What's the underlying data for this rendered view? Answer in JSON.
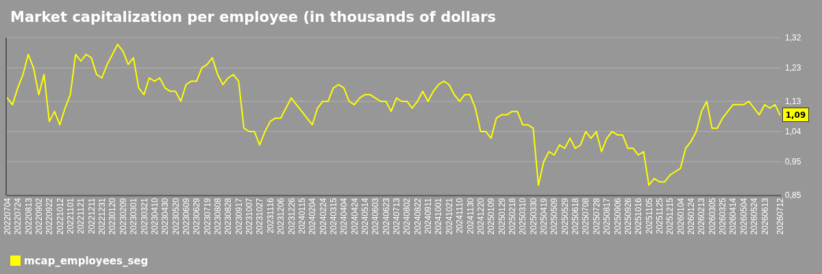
{
  "chart_data": {
    "type": "line",
    "title": "Market capitalization per employee (in thousands of dollars",
    "x": [
      "2022-07-04",
      "2022-07-14",
      "2022-07-24",
      "2022-08-03",
      "2022-08-13",
      "2022-08-23",
      "2022-09-02",
      "2022-09-12",
      "2022-09-22",
      "2022-10-02",
      "2022-10-12",
      "2022-10-22",
      "2022-11-01",
      "2022-11-11",
      "2022-11-21",
      "2022-12-01",
      "2022-12-11",
      "2022-12-21",
      "2022-12-31",
      "2023-01-10",
      "2023-01-20",
      "2023-01-30",
      "2023-02-09",
      "2023-02-19",
      "2023-03-01",
      "2023-03-11",
      "2023-03-21",
      "2023-03-31",
      "2023-04-10",
      "2023-04-20",
      "2023-04-30",
      "2023-05-10",
      "2023-05-20",
      "2023-05-30",
      "2023-06-09",
      "2023-06-19",
      "2023-06-29",
      "2023-07-09",
      "2023-07-19",
      "2023-07-29",
      "2023-08-08",
      "2023-08-18",
      "2023-08-28",
      "2023-09-07",
      "2023-09-17",
      "2023-09-27",
      "2023-10-07",
      "2023-10-17",
      "2023-10-27",
      "2023-11-06",
      "2023-11-16",
      "2023-11-26",
      "2023-12-06",
      "2023-12-16",
      "2023-12-26",
      "2024-01-05",
      "2024-01-15",
      "2024-01-25",
      "2024-02-04",
      "2024-02-14",
      "2024-02-24",
      "2024-03-05",
      "2024-03-15",
      "2024-03-25",
      "2024-04-04",
      "2024-04-14",
      "2024-04-24",
      "2024-05-04",
      "2024-05-14",
      "2024-05-24",
      "2024-06-03",
      "2024-06-13",
      "2024-06-23",
      "2024-07-03",
      "2024-07-13",
      "2024-07-23",
      "2024-08-02",
      "2024-08-12",
      "2024-08-22",
      "2024-09-01",
      "2024-09-11",
      "2024-09-21",
      "2024-10-01",
      "2024-10-11",
      "2024-10-21",
      "2024-10-31",
      "2024-11-10",
      "2024-11-20",
      "2024-11-30",
      "2024-12-10",
      "2024-12-20",
      "2024-12-30",
      "2025-01-09",
      "2025-01-19",
      "2025-01-29",
      "2025-02-08",
      "2025-02-18",
      "2025-02-28",
      "2025-03-10",
      "2025-03-20",
      "2025-03-30",
      "2025-04-09",
      "2025-04-19",
      "2025-04-29",
      "2025-05-09",
      "2025-05-19",
      "2025-05-29",
      "2025-06-08",
      "2025-06-18",
      "2025-06-28",
      "2025-07-08",
      "2025-07-18",
      "2025-07-28",
      "2025-08-07",
      "2025-08-17",
      "2025-08-27",
      "2025-09-06",
      "2025-09-16",
      "2025-09-26",
      "2025-10-06",
      "2025-10-16",
      "2025-10-26",
      "2025-11-05",
      "2025-11-15",
      "2025-11-25",
      "2025-12-05",
      "2025-12-15",
      "2025-12-25",
      "2026-01-04",
      "2026-01-14",
      "2026-01-24",
      "2026-02-03",
      "2026-02-13",
      "2026-02-23",
      "2026-03-05",
      "2026-03-15",
      "2026-03-25",
      "2026-04-04",
      "2026-04-14",
      "2026-04-24",
      "2026-05-04",
      "2026-05-14",
      "2026-05-24",
      "2026-06-03",
      "2026-06-13",
      "2026-06-23",
      "2026-07-03",
      "2026-07-12"
    ],
    "series": [
      {
        "name": "mcap_employees_seg",
        "color": "#ffff00",
        "values": [
          1.14,
          1.12,
          1.17,
          1.21,
          1.27,
          1.23,
          1.15,
          1.21,
          1.07,
          1.1,
          1.06,
          1.11,
          1.15,
          1.27,
          1.25,
          1.27,
          1.26,
          1.21,
          1.2,
          1.24,
          1.27,
          1.3,
          1.28,
          1.24,
          1.26,
          1.17,
          1.15,
          1.2,
          1.19,
          1.2,
          1.17,
          1.16,
          1.16,
          1.13,
          1.18,
          1.19,
          1.19,
          1.23,
          1.24,
          1.26,
          1.21,
          1.18,
          1.2,
          1.21,
          1.19,
          1.05,
          1.04,
          1.04,
          1.0,
          1.04,
          1.07,
          1.08,
          1.08,
          1.11,
          1.14,
          1.12,
          1.1,
          1.08,
          1.06,
          1.11,
          1.13,
          1.13,
          1.17,
          1.18,
          1.17,
          1.13,
          1.12,
          1.14,
          1.15,
          1.15,
          1.14,
          1.13,
          1.13,
          1.1,
          1.14,
          1.13,
          1.13,
          1.11,
          1.13,
          1.16,
          1.13,
          1.16,
          1.18,
          1.19,
          1.18,
          1.15,
          1.13,
          1.15,
          1.15,
          1.11,
          1.04,
          1.04,
          1.02,
          1.08,
          1.09,
          1.09,
          1.1,
          1.1,
          1.06,
          1.06,
          1.05,
          0.88,
          0.95,
          0.98,
          0.97,
          1.0,
          0.99,
          1.02,
          0.99,
          1.0,
          1.04,
          1.02,
          1.04,
          0.98,
          1.02,
          1.04,
          1.03,
          1.03,
          0.99,
          0.99,
          0.97,
          0.98,
          0.88,
          0.9,
          0.89,
          0.89,
          0.91,
          0.92,
          0.93,
          0.99,
          1.01,
          1.04,
          1.1,
          1.13,
          1.05,
          1.05,
          1.08,
          1.1,
          1.12,
          1.12,
          1.12,
          1.13,
          1.11,
          1.09,
          1.12,
          1.11,
          1.12,
          1.09
        ]
      }
    ],
    "xlim": [
      "2022-07-02",
      "2026-07-14"
    ],
    "ylim": [
      0.85,
      1.32
    ],
    "xticks": [
      {
        "value": "2022-07-04",
        "label": "20220704"
      },
      {
        "value": "2022-07-24",
        "label": "20220724"
      },
      {
        "value": "2022-08-13",
        "label": "20220813"
      },
      {
        "value": "2022-09-02",
        "label": "20220902"
      },
      {
        "value": "2022-09-22",
        "label": "20220922"
      },
      {
        "value": "2022-10-12",
        "label": "20221012"
      },
      {
        "value": "2022-11-01",
        "label": "20221101"
      },
      {
        "value": "2022-11-21",
        "label": "20221121"
      },
      {
        "value": "2022-12-11",
        "label": "20221211"
      },
      {
        "value": "2022-12-31",
        "label": "20221231"
      },
      {
        "value": "2023-01-20",
        "label": "20230120"
      },
      {
        "value": "2023-02-09",
        "label": "20230209"
      },
      {
        "value": "2023-03-01",
        "label": "20230301"
      },
      {
        "value": "2023-03-21",
        "label": "20230321"
      },
      {
        "value": "2023-04-10",
        "label": "20230410"
      },
      {
        "value": "2023-04-30",
        "label": "20230430"
      },
      {
        "value": "2023-05-20",
        "label": "20230520"
      },
      {
        "value": "2023-06-09",
        "label": "20230609"
      },
      {
        "value": "2023-06-29",
        "label": "20230629"
      },
      {
        "value": "2023-07-19",
        "label": "20230719"
      },
      {
        "value": "2023-08-08",
        "label": "20230808"
      },
      {
        "value": "2023-08-28",
        "label": "20230828"
      },
      {
        "value": "2023-09-17",
        "label": "20230917"
      },
      {
        "value": "2023-10-07",
        "label": "20231007"
      },
      {
        "value": "2023-10-27",
        "label": "20231027"
      },
      {
        "value": "2023-11-16",
        "label": "20231116"
      },
      {
        "value": "2023-12-06",
        "label": "20231206"
      },
      {
        "value": "2023-12-26",
        "label": "20231226"
      },
      {
        "value": "2024-01-15",
        "label": "20240115"
      },
      {
        "value": "2024-02-04",
        "label": "20240204"
      },
      {
        "value": "2024-02-24",
        "label": "20240224"
      },
      {
        "value": "2024-03-15",
        "label": "20240315"
      },
      {
        "value": "2024-04-04",
        "label": "20240404"
      },
      {
        "value": "2024-04-24",
        "label": "20240424"
      },
      {
        "value": "2024-05-14",
        "label": "20240514"
      },
      {
        "value": "2024-06-03",
        "label": "20240603"
      },
      {
        "value": "2024-06-23",
        "label": "20240623"
      },
      {
        "value": "2024-07-13",
        "label": "20240713"
      },
      {
        "value": "2024-08-02",
        "label": "20240802"
      },
      {
        "value": "2024-08-22",
        "label": "20240822"
      },
      {
        "value": "2024-09-11",
        "label": "20240911"
      },
      {
        "value": "2024-10-01",
        "label": "20241001"
      },
      {
        "value": "2024-10-21",
        "label": "20241021"
      },
      {
        "value": "2024-11-10",
        "label": "20241110"
      },
      {
        "value": "2024-11-30",
        "label": "20241130"
      },
      {
        "value": "2024-12-20",
        "label": "20241220"
      },
      {
        "value": "2025-01-09",
        "label": "20250109"
      },
      {
        "value": "2025-01-29",
        "label": "20250129"
      },
      {
        "value": "2025-02-18",
        "label": "20250218"
      },
      {
        "value": "2025-03-10",
        "label": "20250310"
      },
      {
        "value": "2025-03-30",
        "label": "20250330"
      },
      {
        "value": "2025-04-19",
        "label": "20250419"
      },
      {
        "value": "2025-05-09",
        "label": "20250509"
      },
      {
        "value": "2025-05-29",
        "label": "20250529"
      },
      {
        "value": "2025-06-18",
        "label": "20250618"
      },
      {
        "value": "2025-07-08",
        "label": "20250708"
      },
      {
        "value": "2025-07-28",
        "label": "20250728"
      },
      {
        "value": "2025-08-17",
        "label": "20250817"
      },
      {
        "value": "2025-09-06",
        "label": "20250906"
      },
      {
        "value": "2025-09-26",
        "label": "20250926"
      },
      {
        "value": "2025-10-16",
        "label": "20251016"
      },
      {
        "value": "2025-11-05",
        "label": "20251105"
      },
      {
        "value": "2025-11-25",
        "label": "20251125"
      },
      {
        "value": "2025-12-15",
        "label": "20251215"
      },
      {
        "value": "2026-01-04",
        "label": "20260104"
      },
      {
        "value": "2026-01-24",
        "label": "20260124"
      },
      {
        "value": "2026-02-13",
        "label": "20260213"
      },
      {
        "value": "2026-03-05",
        "label": "20260305"
      },
      {
        "value": "2026-03-25",
        "label": "20260325"
      },
      {
        "value": "2026-04-14",
        "label": "20260414"
      },
      {
        "value": "2026-05-04",
        "label": "20260504"
      },
      {
        "value": "2026-05-24",
        "label": "20260524"
      },
      {
        "value": "2026-06-13",
        "label": "20260613"
      },
      {
        "value": "2026-07-12",
        "label": "20260712"
      }
    ],
    "yticks": [
      {
        "value": 0.85,
        "label": "0,85"
      },
      {
        "value": 0.95,
        "label": "0,95"
      },
      {
        "value": 1.04,
        "label": "1,04"
      },
      {
        "value": 1.13,
        "label": "1,13"
      },
      {
        "value": 1.23,
        "label": "1,23"
      },
      {
        "value": 1.32,
        "label": "1,32"
      }
    ],
    "grid": "y",
    "legend": "bottom",
    "annotations": [
      {
        "text": "1,09",
        "x": "2026-07-12",
        "y": 1.09
      }
    ]
  }
}
